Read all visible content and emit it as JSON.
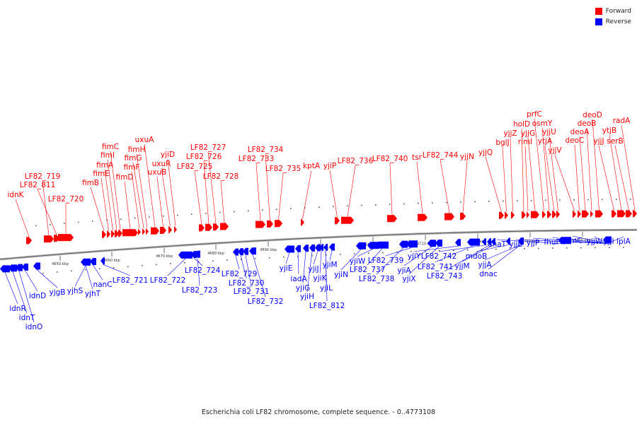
{
  "caption": "Escherichia coli LF82 chromosome, complete sequence. - 0..4773108",
  "legend": [
    {
      "label": "Forward",
      "color": "#ff0000"
    },
    {
      "label": "Reverse",
      "color": "#0000ff"
    }
  ],
  "strand_colors": {
    "forward": "#ff0000",
    "reverse": "#0000ff"
  },
  "ticks": [
    "4650 kbp",
    "4660 kbp",
    "4670 kbp",
    "4680 kbp",
    "4690 kbp",
    "4700 kbp",
    "4710 kbp",
    "4720 kbp",
    "4730 kbp",
    "4740 kbp",
    "4750 kbp"
  ],
  "forward_genes": [
    "idnK",
    "LF82_719",
    "LF82_811",
    "LF82_720",
    "fimB",
    "fimE",
    "fimA",
    "fimI",
    "fimC",
    "fimD",
    "fimF",
    "fimG",
    "fimH",
    "uxuA",
    "uxuB",
    "uxuR",
    "yjiD",
    "LF82_725",
    "LF82_726",
    "LF82_727",
    "LF82_728",
    "LF82_733",
    "LF82_734",
    "LF82_735",
    "kptA",
    "yjiP",
    "LF82_736",
    "LF82_740",
    "tsr",
    "LF82_744",
    "yjjN",
    "yjjQ",
    "bglJ",
    "yjjZ",
    "holD",
    "rimI",
    "yjjG",
    "prfC",
    "osmY",
    "ytjA",
    "yjjU",
    "yjjV",
    "deoC",
    "deoA",
    "deoB",
    "deoD",
    "yjjJ",
    "ytjB",
    "serB",
    "radA"
  ],
  "reverse_genes": [
    "idnR",
    "idnT",
    "idnO",
    "idnD",
    "yjgB",
    "yjhS",
    "yjhT",
    "nanC",
    "LF82_721",
    "LF82_722",
    "LF82_724",
    "LF82_723",
    "LF82_729",
    "LF82_730",
    "LF82_731",
    "LF82_732",
    "yjiE",
    "iadA",
    "yjiG",
    "yjiH",
    "yjiJ",
    "yjiK",
    "yjiL",
    "yjiM",
    "LF82_812",
    "yjiN",
    "yjiW",
    "LF82_737",
    "LF82_738",
    "LF82_739",
    "yjiA",
    "yjiX",
    "yjiY",
    "LF82_741",
    "LF82_742",
    "LF82_743",
    "yjjM",
    "mdoB",
    "yjjA",
    "dnaT",
    "dnac",
    "yjjB",
    "yjjP",
    "fhuF",
    "rsmC",
    "yjjW",
    "yjjI",
    "lplA"
  ]
}
